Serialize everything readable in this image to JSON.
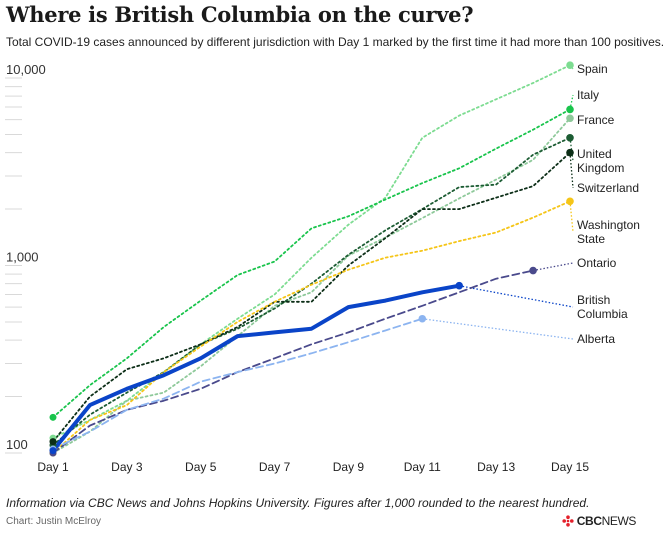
{
  "title": "Where is British Columbia on the curve?",
  "subtitle": "Total COVID-19 cases announced by different jurisdiction with Day 1 marked by the first time it had more than 100 positives.",
  "footnote": "Information via CBC News and Johns Hopkins University. Figures after 1,000 rounded to the nearest hundred.",
  "credit": "Chart: Justin McElroy",
  "brand": {
    "prefix": "CBC",
    "suffix": "NEWS",
    "accent_color": "#e4202b"
  },
  "chart_data": {
    "type": "line",
    "title": "Where is British Columbia on the curve?",
    "yscale": "log",
    "ylim": [
      100,
      10000
    ],
    "xlim": [
      1,
      15
    ],
    "yticks": [
      {
        "value": 100,
        "label": "100"
      },
      {
        "value": 1000,
        "label": "1,000"
      },
      {
        "value": 10000,
        "label": "10,000"
      }
    ],
    "xticks": [
      {
        "value": 1,
        "label": "Day 1"
      },
      {
        "value": 3,
        "label": "Day 3"
      },
      {
        "value": 5,
        "label": "Day 5"
      },
      {
        "value": 7,
        "label": "Day 7"
      },
      {
        "value": 9,
        "label": "Day 9"
      },
      {
        "value": 11,
        "label": "Day 11"
      },
      {
        "value": 13,
        "label": "Day 13"
      },
      {
        "value": 15,
        "label": "Day 15"
      }
    ],
    "series": [
      {
        "name": "Spain",
        "color": "#7ddc91",
        "style": "dotted",
        "x": [
          1,
          2,
          3,
          4,
          5,
          6,
          7,
          8,
          9,
          10,
          11,
          12,
          13,
          14,
          15
        ],
        "values": [
          120,
          150,
          190,
          270,
          380,
          520,
          700,
          1100,
          1650,
          2300,
          4800,
          6300,
          7700,
          9400,
          11700
        ],
        "label_lines": [
          "Spain"
        ]
      },
      {
        "name": "Italy",
        "color": "#19c44c",
        "style": "dotted",
        "x": [
          1,
          2,
          3,
          4,
          5,
          6,
          7,
          8,
          9,
          10,
          11,
          12,
          13,
          14,
          15
        ],
        "values": [
          155,
          230,
          320,
          470,
          650,
          890,
          1050,
          1580,
          1830,
          2250,
          2750,
          3300,
          4200,
          5300,
          6800
        ],
        "label_lines": [
          "Italy"
        ]
      },
      {
        "name": "France",
        "color": "#8ec99a",
        "style": "dotted",
        "x": [
          1,
          2,
          3,
          4,
          5,
          6,
          7,
          8,
          9,
          10,
          11,
          12,
          13,
          14,
          15
        ],
        "values": [
          100,
          130,
          190,
          210,
          290,
          420,
          610,
          720,
          1130,
          1410,
          1790,
          2280,
          2870,
          3660,
          6100
        ],
        "label_lines": [
          "France"
        ]
      },
      {
        "name": "United Kingdom",
        "color": "#1c5c33",
        "style": "dotted",
        "x": [
          1,
          2,
          3,
          4,
          5,
          6,
          7,
          8,
          9,
          10,
          11,
          12,
          13,
          14,
          15
        ],
        "values": [
          110,
          160,
          210,
          270,
          380,
          460,
          590,
          800,
          1140,
          1540,
          2000,
          2620,
          2700,
          3900,
          4800
        ],
        "label_lines": [
          "United",
          "Kingdom"
        ]
      },
      {
        "name": "Switzerland",
        "color": "#0c2e17",
        "style": "dotted",
        "x": [
          1,
          2,
          3,
          4,
          5,
          6,
          7,
          8,
          9,
          10,
          11,
          12,
          13,
          14,
          15
        ],
        "values": [
          115,
          200,
          280,
          320,
          380,
          470,
          640,
          640,
          1000,
          1400,
          2000,
          2000,
          2300,
          2650,
          4000
        ],
        "label_lines": [
          "Switzerland"
        ]
      },
      {
        "name": "Washington State",
        "color": "#f5c518",
        "style": "dotted",
        "x": [
          1,
          2,
          3,
          4,
          5,
          6,
          7,
          8,
          9,
          10,
          11,
          12,
          13,
          14,
          15
        ],
        "values": [
          100,
          150,
          180,
          270,
          370,
          500,
          640,
          790,
          950,
          1100,
          1200,
          1350,
          1500,
          1800,
          2200
        ],
        "label_lines": [
          "Washington",
          "State"
        ]
      },
      {
        "name": "Ontario",
        "color": "#4a4a8c",
        "style": "dashed",
        "x": [
          1,
          2,
          3,
          4,
          5,
          6,
          7,
          8,
          9,
          10,
          11,
          12,
          13,
          14
        ],
        "values": [
          100,
          140,
          170,
          190,
          220,
          270,
          320,
          380,
          440,
          520,
          610,
          720,
          850,
          940
        ],
        "label_lines": [
          "Ontario"
        ]
      },
      {
        "name": "British Columbia",
        "color": "#0a44c8",
        "style": "solid",
        "x": [
          1,
          2,
          3,
          4,
          5,
          6,
          7,
          8,
          9,
          10,
          11,
          12
        ],
        "values": [
          103,
          180,
          220,
          260,
          320,
          420,
          440,
          460,
          600,
          650,
          720,
          780
        ],
        "label_lines": [
          "British",
          "Columbia"
        ]
      },
      {
        "name": "Alberta",
        "color": "#8cb4f0",
        "style": "dashed",
        "x": [
          1,
          2,
          3,
          4,
          5,
          6,
          7,
          8,
          9,
          10,
          11
        ],
        "values": [
          105,
          130,
          170,
          195,
          240,
          270,
          300,
          340,
          390,
          450,
          520
        ],
        "label_lines": [
          "Alberta"
        ]
      }
    ]
  }
}
